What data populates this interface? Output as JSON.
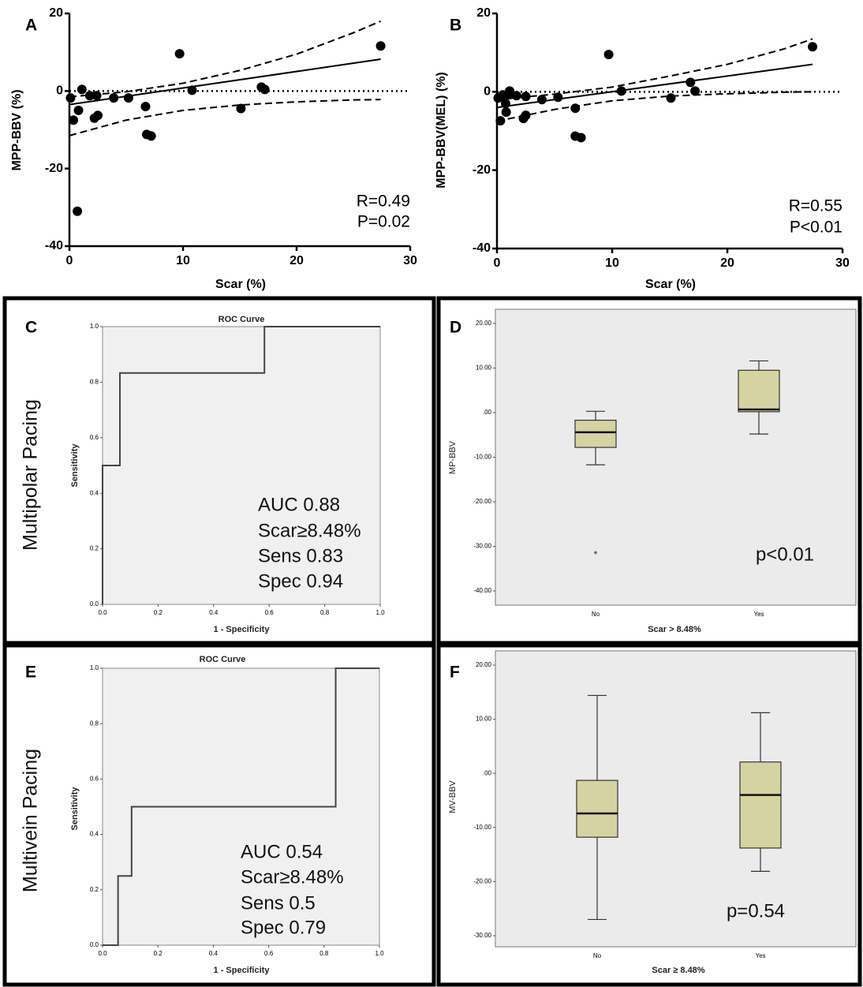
{
  "chart_data": [
    {
      "type": "scatter",
      "panel_label": "A",
      "xlabel": "Scar (%)",
      "ylabel": "MPP-BBV (%)",
      "annotations": [
        "R=0.49",
        "P=0.02"
      ],
      "x": [
        0.1,
        0.35,
        0.7,
        0.8,
        1.1,
        1.8,
        2.4,
        2.2,
        2.5,
        3.9,
        5.2,
        6.7,
        6.8,
        7.2,
        9.7,
        10.8,
        15.1,
        16.9,
        17.2,
        27.4
      ],
      "values": [
        -1.8,
        -7.5,
        -31,
        -5,
        0.4,
        -1.2,
        -1.2,
        -7,
        -6.3,
        -1.8,
        -1.8,
        -4,
        -11.2,
        -11.6,
        9.6,
        0.2,
        -4.5,
        1,
        0.4,
        11.6
      ],
      "fit_x": [
        0,
        27.4
      ],
      "fit_y": [
        -3.5,
        8.2
      ],
      "ci_x": [
        0,
        5,
        10,
        15,
        20,
        25,
        27.4
      ],
      "ci_upper": [
        -1.5,
        -0.2,
        2.0,
        5.3,
        9.5,
        15,
        18
      ],
      "ci_lower": [
        -11.5,
        -7.5,
        -5,
        -3.6,
        -2.8,
        -2.3,
        -2.2
      ],
      "reference_line": 0,
      "xlim": [
        0,
        30
      ],
      "xticks": [
        0,
        10,
        20,
        30
      ],
      "ylim": [
        -40,
        20
      ],
      "yticks": [
        -40,
        -20,
        0,
        20
      ]
    },
    {
      "type": "scatter",
      "panel_label": "B",
      "xlabel": "Scar (%)",
      "ylabel": "MPP-BBV(MEL) (%)",
      "annotations": [
        "R=0.55",
        "P<0.01"
      ],
      "x": [
        0.1,
        0.3,
        0.5,
        0.75,
        0.8,
        1,
        1.1,
        1.7,
        2.3,
        2.5,
        2.5,
        3.9,
        5.3,
        6.8,
        6.8,
        7.3,
        9.7,
        10.8,
        15.1,
        16.8,
        17.2,
        27.4
      ],
      "values": [
        -1.6,
        -7.4,
        -0.8,
        -3,
        -5.2,
        -0.8,
        0.2,
        -1,
        -6.8,
        -1.2,
        -6,
        -2,
        -1.4,
        -4.2,
        -11.3,
        -11.7,
        9.5,
        0.2,
        -1.6,
        2.4,
        0.2,
        11.5
      ],
      "fit_x": [
        0,
        27.4
      ],
      "fit_y": [
        -4,
        7
      ],
      "ci_x": [
        0,
        5,
        10,
        15,
        20,
        25,
        27.4
      ],
      "ci_upper": [
        -2,
        -0.6,
        1.2,
        4,
        7,
        11,
        13.5
      ],
      "ci_lower": [
        -7.5,
        -4.5,
        -2.3,
        -1.1,
        -0.5,
        -0.1,
        0
      ],
      "reference_line": 0,
      "xlim": [
        0,
        30
      ],
      "xticks": [
        0,
        10,
        20,
        30
      ],
      "ylim": [
        -40,
        20
      ],
      "yticks": [
        -40,
        -20,
        0,
        20
      ]
    },
    {
      "type": "line",
      "panel_label": "C",
      "title": "ROC Curve",
      "side_label": "Multipolar Pacing",
      "xlabel": "1 - Specificity",
      "ylabel": "Sensitivity",
      "annotations": [
        "AUC 0.88",
        "Scar≥8.48%",
        "Sens 0.83",
        "Spec 0.94"
      ],
      "x": [
        0,
        0,
        0.0625,
        0.0625,
        0.583,
        0.583,
        1
      ],
      "values": [
        0,
        0.5,
        0.5,
        0.833,
        0.833,
        1,
        1
      ],
      "xlim": [
        0,
        1
      ],
      "ylim": [
        0,
        1
      ],
      "xticks": [
        {
          "value": 0,
          "label": "0.0"
        },
        {
          "value": 0.2,
          "label": "0.2"
        },
        {
          "value": 0.4,
          "label": "0.4"
        },
        {
          "value": 0.6,
          "label": "0.6"
        },
        {
          "value": 0.8,
          "label": "0.8"
        },
        {
          "value": 1,
          "label": "1.0"
        }
      ],
      "yticks": [
        {
          "value": 0,
          "label": "0.0"
        },
        {
          "value": 0.2,
          "label": "0.2"
        },
        {
          "value": 0.4,
          "label": "0.4"
        },
        {
          "value": 0.6,
          "label": "0.6"
        },
        {
          "value": 0.8,
          "label": "0.8"
        },
        {
          "value": 1,
          "label": "1.0"
        }
      ]
    },
    {
      "type": "box",
      "panel_label": "D",
      "xlabel": "Scar > 8.48%",
      "ylabel": "MP-BBV",
      "annotations": [
        "p<0.01"
      ],
      "categories": [
        "No",
        "Yes"
      ],
      "whisker_low": [
        -11.7,
        -4.8
      ],
      "q1": [
        -7.8,
        0.2
      ],
      "median": [
        -4.4,
        0.7
      ],
      "q3": [
        -1.7,
        9.5
      ],
      "whisker_high": [
        0.3,
        11.6
      ],
      "outliers": [
        [
          -31.4
        ],
        []
      ],
      "ylim": [
        -40,
        20
      ],
      "yticks": [
        {
          "value": -40,
          "label": "-40.00"
        },
        {
          "value": -30,
          "label": "-30.00"
        },
        {
          "value": -20,
          "label": "-20.00"
        },
        {
          "value": -10,
          "label": "-10.00"
        },
        {
          "value": 0,
          "label": ".00"
        },
        {
          "value": 10,
          "label": "10.00"
        },
        {
          "value": 20,
          "label": "20.00"
        }
      ]
    },
    {
      "type": "line",
      "panel_label": "E",
      "title": "ROC Curve",
      "side_label": "Multivein Pacing",
      "xlabel": "1 - Specificity",
      "ylabel": "Sensitivity",
      "annotations": [
        "AUC 0.54",
        "Scar≥8.48%",
        "Sens 0.5",
        "Spec 0.79"
      ],
      "x": [
        0,
        0.056,
        0.056,
        0.105,
        0.105,
        0.842,
        0.842,
        1
      ],
      "values": [
        0,
        0,
        0.25,
        0.25,
        0.5,
        0.5,
        1,
        1
      ],
      "xlim": [
        0,
        1
      ],
      "ylim": [
        0,
        1
      ],
      "xticks": [
        {
          "value": 0,
          "label": "0.0"
        },
        {
          "value": 0.2,
          "label": "0.2"
        },
        {
          "value": 0.4,
          "label": "0.4"
        },
        {
          "value": 0.6,
          "label": "0.6"
        },
        {
          "value": 0.8,
          "label": "0.8"
        },
        {
          "value": 1,
          "label": "1.0"
        }
      ],
      "yticks": [
        {
          "value": 0,
          "label": "0.0"
        },
        {
          "value": 0.2,
          "label": "0.2"
        },
        {
          "value": 0.4,
          "label": "0.4"
        },
        {
          "value": 0.6,
          "label": "0.6"
        },
        {
          "value": 0.8,
          "label": "0.8"
        },
        {
          "value": 1,
          "label": "1.0"
        }
      ]
    },
    {
      "type": "box",
      "panel_label": "F",
      "xlabel": "Scar ≥ 8.48%",
      "ylabel": "MV-BBV",
      "annotations": [
        "p=0.54"
      ],
      "categories": [
        "No",
        "Yes"
      ],
      "whisker_low": [
        -27,
        -18.1
      ],
      "q1": [
        -11.8,
        -13.8
      ],
      "median": [
        -7.4,
        -4
      ],
      "q3": [
        -1.3,
        2.1
      ],
      "whisker_high": [
        14.4,
        11.2
      ],
      "outliers": [
        [],
        []
      ],
      "ylim": [
        -30,
        20
      ],
      "yticks": [
        {
          "value": -30,
          "label": "-30.00"
        },
        {
          "value": -20,
          "label": "-20.00"
        },
        {
          "value": -10,
          "label": "-10.00"
        },
        {
          "value": 0,
          "label": ".00"
        },
        {
          "value": 10,
          "label": "10.00"
        },
        {
          "value": 20,
          "label": "20.00"
        }
      ]
    }
  ]
}
